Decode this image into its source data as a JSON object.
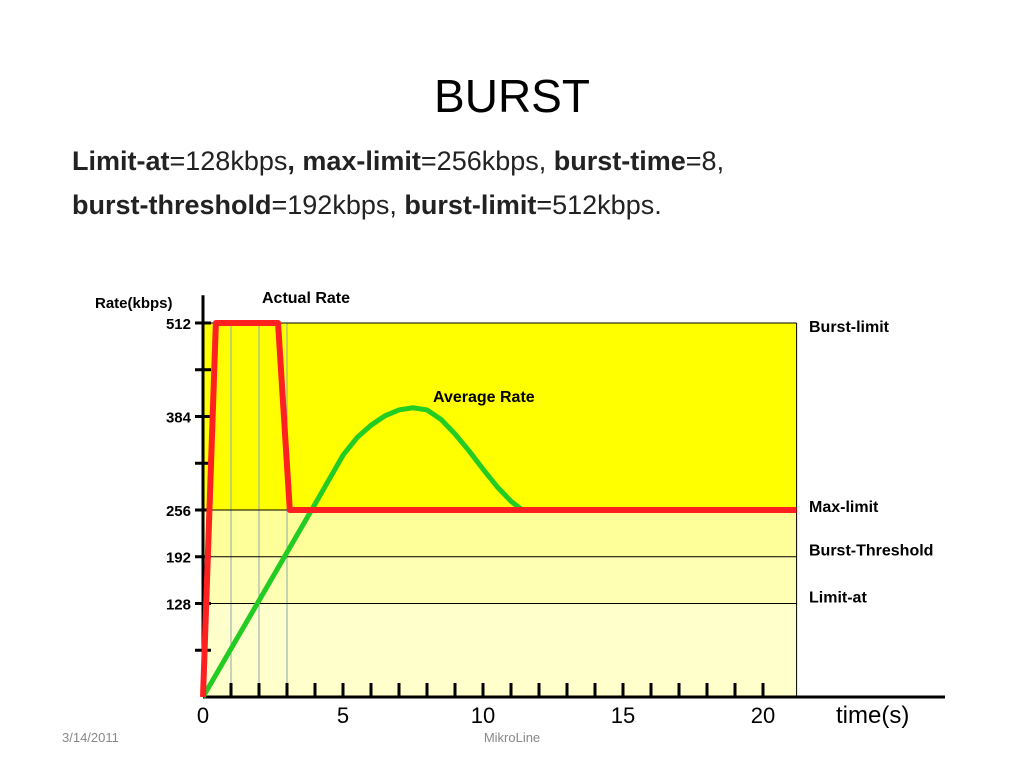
{
  "title": "BURST",
  "description": [
    [
      {
        "text": "Limit-at",
        "bold": true
      },
      {
        "text": "=128kbps"
      },
      {
        "text": ", max-limit",
        "bold": true
      },
      {
        "text": "=256kbps, "
      },
      {
        "text": "burst-time",
        "bold": true
      },
      {
        "text": "=8,"
      }
    ],
    [
      {
        "text": "burst-threshold",
        "bold": true
      },
      {
        "text": "=192kbps, "
      },
      {
        "text": "burst-limit",
        "bold": true
      },
      {
        "text": "=512kbps."
      }
    ]
  ],
  "footer": {
    "date": "3/14/2011",
    "center": "MikroLine"
  },
  "chart_data": {
    "type": "line",
    "y_label": "Rate(kbps)",
    "x_label": "time(s)",
    "xlim": [
      0,
      26.5
    ],
    "ylim": [
      0,
      550
    ],
    "xticks": [
      0,
      5,
      10,
      15,
      20
    ],
    "xminor_ticks": [
      1,
      2,
      3,
      4,
      6,
      7,
      8,
      9,
      11,
      12,
      13,
      14,
      16,
      17,
      18,
      19
    ],
    "yticks": [
      128,
      192,
      256,
      384,
      512
    ],
    "yminor_ticks": [
      64,
      320,
      448
    ],
    "band_x": [
      0,
      21.2
    ],
    "bands": [
      {
        "from": 256,
        "to": 512,
        "color": "#ffff00"
      },
      {
        "from": 192,
        "to": 256,
        "color": "#ffff99"
      },
      {
        "from": 128,
        "to": 192,
        "color": "#ffffb3"
      },
      {
        "from": 0,
        "to": 128,
        "color": "#ffffcc"
      }
    ],
    "vlines": [
      1,
      2,
      3
    ],
    "reference_lines": [
      {
        "label": "Burst-limit",
        "value": 512
      },
      {
        "label": "Max-limit",
        "value": 256
      },
      {
        "label": "Burst-Threshold",
        "value": 192
      },
      {
        "label": "Limit-at",
        "value": 128
      }
    ],
    "series": [
      {
        "name": "Actual Rate",
        "color": "#ff2020",
        "x": [
          0,
          0.46,
          2.68,
          3.1,
          21.2
        ],
        "values": [
          0,
          512,
          512,
          256,
          256
        ]
      },
      {
        "name": "Average Rate",
        "color": "#22cc22",
        "x": [
          0,
          1,
          2,
          3,
          4,
          5,
          5.5,
          6,
          6.5,
          7,
          7.5,
          8,
          8.5,
          9,
          9.5,
          10,
          10.5,
          11,
          11.4
        ],
        "values": [
          0,
          66,
          132,
          198,
          264,
          331,
          355,
          372,
          385,
          393,
          396,
          393,
          380,
          360,
          337,
          312,
          288,
          268,
          256
        ]
      }
    ]
  }
}
